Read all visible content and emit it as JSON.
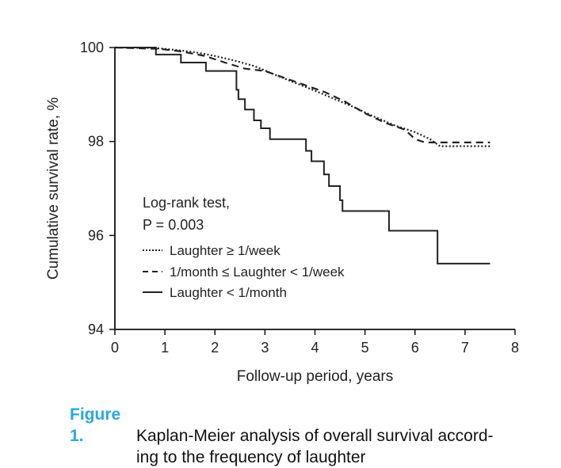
{
  "chart_data": {
    "type": "line",
    "title": "",
    "xlabel": "Follow-up period, years",
    "ylabel": "Cumulative survival rate, %",
    "xlim": [
      0,
      8
    ],
    "ylim": [
      94,
      100
    ],
    "xticks": [
      0,
      1,
      2,
      3,
      4,
      5,
      6,
      7,
      8
    ],
    "yticks": [
      94,
      96,
      98,
      100
    ],
    "xtick_labels": [
      "0",
      "1",
      "2",
      "3",
      "4",
      "5",
      "6",
      "7",
      "8"
    ],
    "ytick_labels": [
      "94",
      "96",
      "98",
      "100"
    ],
    "grid": false,
    "legend_position": "center-left",
    "annotation": {
      "line1": "Log-rank test,",
      "line2": "P = 0.003"
    },
    "series": [
      {
        "name": "Laughter ≥ 1/week",
        "style": "dotted",
        "color": "#222222",
        "x": [
          0,
          0.8,
          1.2,
          1.6,
          2.0,
          2.4,
          2.8,
          3.2,
          3.6,
          4.0,
          4.4,
          4.8,
          5.2,
          5.6,
          6.0,
          6.3,
          6.5,
          7.5
        ],
        "y": [
          100,
          99.99,
          99.95,
          99.9,
          99.82,
          99.72,
          99.6,
          99.42,
          99.25,
          99.08,
          98.9,
          98.72,
          98.52,
          98.34,
          98.2,
          98.05,
          97.9,
          97.9
        ]
      },
      {
        "name": "1/month ≤ Laughter < 1/week",
        "style": "dashed",
        "color": "#222222",
        "x": [
          0,
          0.9,
          1.3,
          1.8,
          2.2,
          2.6,
          3.0,
          3.4,
          3.8,
          4.2,
          4.6,
          5.0,
          5.4,
          5.8,
          6.0,
          6.2,
          7.5
        ],
        "y": [
          100,
          99.97,
          99.92,
          99.82,
          99.68,
          99.55,
          99.5,
          99.35,
          99.2,
          99.05,
          98.85,
          98.6,
          98.4,
          98.25,
          98.05,
          97.98,
          97.98
        ]
      },
      {
        "name": "Laughter < 1/month",
        "style": "solid",
        "color": "#222222",
        "step": true,
        "x": [
          0,
          0.82,
          1.32,
          1.82,
          2.43,
          2.47,
          2.6,
          2.78,
          2.92,
          3.1,
          3.28,
          3.82,
          3.93,
          4.18,
          4.28,
          4.5,
          4.55,
          5.48,
          6.45,
          7.5
        ],
        "y": [
          100,
          99.85,
          99.68,
          99.5,
          99.1,
          98.9,
          98.68,
          98.45,
          98.28,
          98.05,
          98.05,
          97.8,
          97.58,
          97.3,
          97.05,
          96.75,
          96.52,
          96.1,
          95.4,
          95.4
        ]
      }
    ]
  },
  "caption": {
    "label": "Figure 1.",
    "line1": "Kaplan-Meier analysis of overall survival accord-",
    "line2": "ing to the frequency of laughter"
  }
}
